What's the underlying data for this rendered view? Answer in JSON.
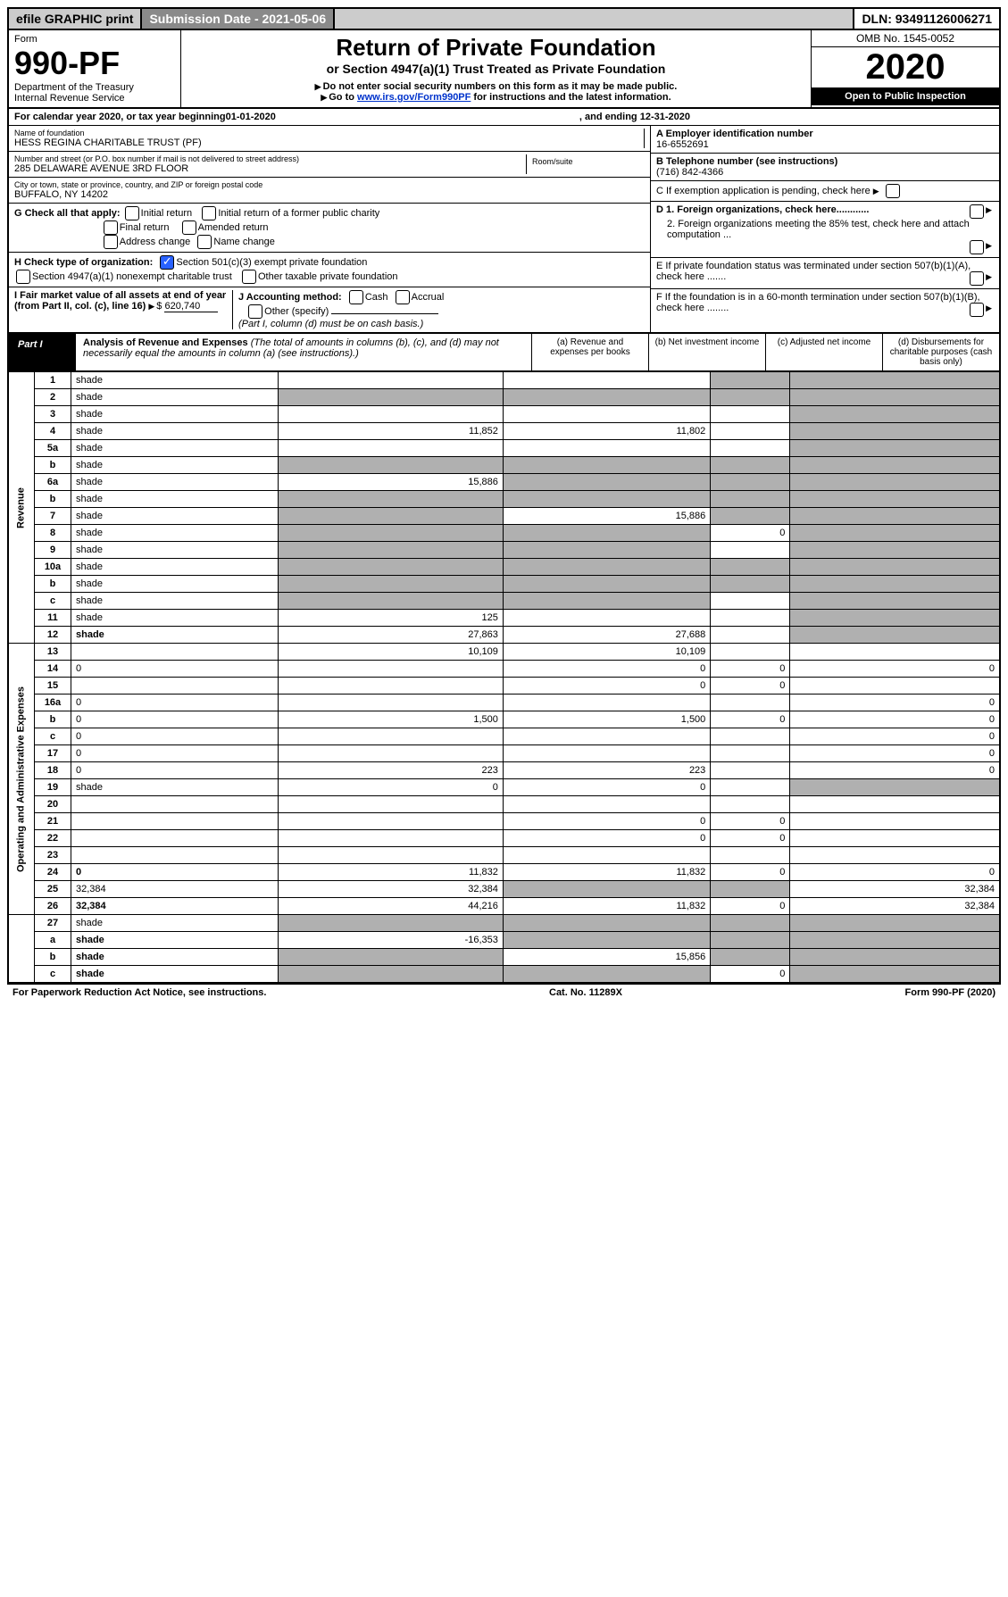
{
  "top": {
    "efile": "efile GRAPHIC print",
    "sub_label": "Submission Date - 2021-05-06",
    "dln": "DLN: 93491126006271"
  },
  "header": {
    "form_label": "Form",
    "form_no": "990-PF",
    "dept": "Department of the Treasury",
    "irs": "Internal Revenue Service",
    "title": "Return of Private Foundation",
    "subtitle": "or Section 4947(a)(1) Trust Treated as Private Foundation",
    "note1": "Do not enter social security numbers on this form as it may be made public.",
    "note2_pre": "Go to ",
    "note2_link": "www.irs.gov/Form990PF",
    "note2_post": " for instructions and the latest information.",
    "omb": "OMB No. 1545-0052",
    "year": "2020",
    "open": "Open to Public Inspection"
  },
  "calendar": {
    "pre": "For calendar year 2020, or tax year beginning ",
    "begin": "01-01-2020",
    "mid": ", and ending ",
    "end": "12-31-2020"
  },
  "info": {
    "name_label": "Name of foundation",
    "name": "HESS REGINA CHARITABLE TRUST (PF)",
    "addr_label": "Number and street (or P.O. box number if mail is not delivered to street address)",
    "addr": "285 DELAWARE AVENUE 3RD FLOOR",
    "room_label": "Room/suite",
    "city_label": "City or town, state or province, country, and ZIP or foreign postal code",
    "city": "BUFFALO, NY  14202",
    "a_label": "A Employer identification number",
    "a_val": "16-6552691",
    "b_label": "B Telephone number (see instructions)",
    "b_val": "(716) 842-4366",
    "c_label": "C If exemption application is pending, check here",
    "g_label": "G Check all that apply:",
    "g_opts": [
      "Initial return",
      "Initial return of a former public charity",
      "Final return",
      "Amended return",
      "Address change",
      "Name change"
    ],
    "d1": "D 1. Foreign organizations, check here............",
    "d2": "2. Foreign organizations meeting the 85% test, check here and attach computation ...",
    "h_label": "H Check type of organization:",
    "h_opt1": "Section 501(c)(3) exempt private foundation",
    "h_opt2": "Section 4947(a)(1) nonexempt charitable trust",
    "h_opt3": "Other taxable private foundation",
    "e_label": "E If private foundation status was terminated under section 507(b)(1)(A), check here .......",
    "i_label": "I Fair market value of all assets at end of year (from Part II, col. (c), line 16)",
    "i_val": "620,740",
    "j_label": "J Accounting method:",
    "j_cash": "Cash",
    "j_accrual": "Accrual",
    "j_other": "Other (specify)",
    "j_note": "(Part I, column (d) must be on cash basis.)",
    "f_label": "F If the foundation is in a 60-month termination under section 507(b)(1)(B), check here ........"
  },
  "part1": {
    "label": "Part I",
    "title": "Analysis of Revenue and Expenses",
    "title_note": "(The total of amounts in columns (b), (c), and (d) may not necessarily equal the amounts in column (a) (see instructions).)",
    "col_a": "(a) Revenue and expenses per books",
    "col_b": "(b) Net investment income",
    "col_c": "(c) Adjusted net income",
    "col_d": "(d) Disbursements for charitable purposes (cash basis only)",
    "revenue_label": "Revenue",
    "expenses_label": "Operating and Administrative Expenses"
  },
  "rows": [
    {
      "n": "1",
      "d": "shade",
      "a": "",
      "b": "",
      "c": "shade"
    },
    {
      "n": "2",
      "d": "shade",
      "a": "shade",
      "b": "shade",
      "c": "shade"
    },
    {
      "n": "3",
      "d": "shade",
      "a": "",
      "b": "",
      "c": ""
    },
    {
      "n": "4",
      "d": "shade",
      "a": "11,852",
      "b": "11,802",
      "c": ""
    },
    {
      "n": "5a",
      "d": "shade",
      "a": "",
      "b": "",
      "c": ""
    },
    {
      "n": "b",
      "d": "shade",
      "a": "shade",
      "b": "shade",
      "c": "shade"
    },
    {
      "n": "6a",
      "d": "shade",
      "a": "15,886",
      "b": "shade",
      "c": "shade"
    },
    {
      "n": "b",
      "d": "shade",
      "a": "shade",
      "b": "shade",
      "c": "shade"
    },
    {
      "n": "7",
      "d": "shade",
      "a": "shade",
      "b": "15,886",
      "c": "shade"
    },
    {
      "n": "8",
      "d": "shade",
      "a": "shade",
      "b": "shade",
      "c": "0"
    },
    {
      "n": "9",
      "d": "shade",
      "a": "shade",
      "b": "shade",
      "c": ""
    },
    {
      "n": "10a",
      "d": "shade",
      "a": "shade",
      "b": "shade",
      "c": "shade"
    },
    {
      "n": "b",
      "d": "shade",
      "a": "shade",
      "b": "shade",
      "c": "shade"
    },
    {
      "n": "c",
      "d": "shade",
      "a": "shade",
      "b": "shade",
      "c": ""
    },
    {
      "n": "11",
      "d": "shade",
      "a": "125",
      "b": "",
      "c": ""
    },
    {
      "n": "12",
      "d": "shade",
      "a": "27,863",
      "b": "27,688",
      "c": "",
      "bold": true
    }
  ],
  "exp_rows": [
    {
      "n": "13",
      "d": "",
      "a": "10,109",
      "b": "10,109",
      "c": ""
    },
    {
      "n": "14",
      "d": "0",
      "a": "",
      "b": "0",
      "c": "0"
    },
    {
      "n": "15",
      "d": "",
      "a": "",
      "b": "0",
      "c": "0"
    },
    {
      "n": "16a",
      "d": "0",
      "a": "",
      "b": "",
      "c": ""
    },
    {
      "n": "b",
      "d": "0",
      "a": "1,500",
      "b": "1,500",
      "c": "0"
    },
    {
      "n": "c",
      "d": "0",
      "a": "",
      "b": "",
      "c": ""
    },
    {
      "n": "17",
      "d": "0",
      "a": "",
      "b": "",
      "c": ""
    },
    {
      "n": "18",
      "d": "0",
      "a": "223",
      "b": "223",
      "c": ""
    },
    {
      "n": "19",
      "d": "shade",
      "a": "0",
      "b": "0",
      "c": ""
    },
    {
      "n": "20",
      "d": "",
      "a": "",
      "b": "",
      "c": ""
    },
    {
      "n": "21",
      "d": "",
      "a": "",
      "b": "0",
      "c": "0"
    },
    {
      "n": "22",
      "d": "",
      "a": "",
      "b": "0",
      "c": "0"
    },
    {
      "n": "23",
      "d": "",
      "a": "",
      "b": "",
      "c": ""
    },
    {
      "n": "24",
      "d": "0",
      "a": "11,832",
      "b": "11,832",
      "c": "0",
      "bold": true
    },
    {
      "n": "25",
      "d": "32,384",
      "a": "32,384",
      "b": "shade",
      "c": "shade"
    },
    {
      "n": "26",
      "d": "32,384",
      "a": "44,216",
      "b": "11,832",
      "c": "0",
      "bold": true
    }
  ],
  "final_rows": [
    {
      "n": "27",
      "d": "shade",
      "a": "shade",
      "b": "shade",
      "c": "shade"
    },
    {
      "n": "a",
      "d": "shade",
      "a": "-16,353",
      "b": "shade",
      "c": "shade",
      "bold": true
    },
    {
      "n": "b",
      "d": "shade",
      "a": "shade",
      "b": "15,856",
      "c": "shade",
      "bold": true
    },
    {
      "n": "c",
      "d": "shade",
      "a": "shade",
      "b": "shade",
      "c": "0",
      "bold": true
    }
  ],
  "footer": {
    "left": "For Paperwork Reduction Act Notice, see instructions.",
    "mid": "Cat. No. 11289X",
    "right": "Form 990-PF (2020)"
  }
}
